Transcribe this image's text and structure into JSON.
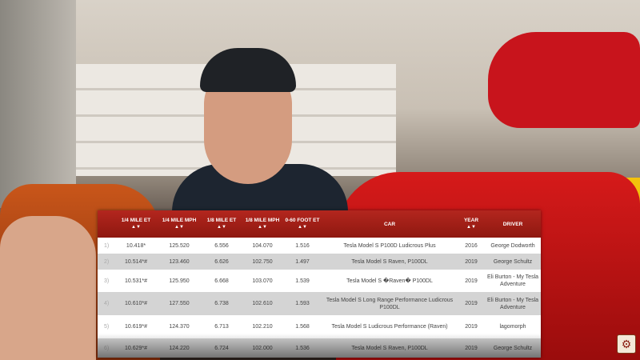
{
  "table": {
    "headers": {
      "rank": "",
      "quarter_et": "1/4 MILE ET",
      "quarter_mph": "1/4 MILE MPH",
      "eighth_et": "1/8 MILE ET",
      "eighth_mph": "1/8 MILE MPH",
      "foot60": "0-60 FOOT ET",
      "car": "CAR",
      "year": "YEAR",
      "driver": "DRIVER"
    },
    "sort_glyph": "▲▼",
    "header_color": "#a01f18",
    "rows": [
      {
        "rank": "1)",
        "quarter_et": "10.418*",
        "quarter_mph": "125.520",
        "eighth_et": "6.556",
        "eighth_mph": "104.070",
        "foot60": "1.516",
        "car": "Tesla Model S P100D Ludicrous Plus",
        "year": "2016",
        "driver": "George Dodworth"
      },
      {
        "rank": "2)",
        "quarter_et": "10.514*#",
        "quarter_mph": "123.460",
        "eighth_et": "6.626",
        "eighth_mph": "102.750",
        "foot60": "1.497",
        "car": "Tesla Model S Raven, P100DL",
        "year": "2019",
        "driver": "George Schultz"
      },
      {
        "rank": "3)",
        "quarter_et": "10.531*#",
        "quarter_mph": "125.950",
        "eighth_et": "6.668",
        "eighth_mph": "103.070",
        "foot60": "1.539",
        "car": "Tesla Model S �Raven� P100DL",
        "year": "2019",
        "driver": "Eli Burton - My Tesla Adventure"
      },
      {
        "rank": "4)",
        "quarter_et": "10.610*#",
        "quarter_mph": "127.550",
        "eighth_et": "6.738",
        "eighth_mph": "102.610",
        "foot60": "1.593",
        "car": "Tesla Model S Long Range Performance Ludicrous P100DL",
        "year": "2019",
        "driver": "Eli Burton - My Tesla Adventure"
      },
      {
        "rank": "5)",
        "quarter_et": "10.619*#",
        "quarter_mph": "124.370",
        "eighth_et": "6.713",
        "eighth_mph": "102.210",
        "foot60": "1.568",
        "car": "Tesla Model S Ludicrous Performance (Raven)",
        "year": "2019",
        "driver": "lagomorph"
      },
      {
        "rank": "6)",
        "quarter_et": "10.629*#",
        "quarter_mph": "124.220",
        "eighth_et": "6.724",
        "eighth_mph": "102.000",
        "foot60": "1.536",
        "car": "Tesla Model S Raven, P100DL",
        "year": "2019",
        "driver": "George Schultz"
      }
    ]
  },
  "channel_logo_icon": "wheel-logo-icon"
}
